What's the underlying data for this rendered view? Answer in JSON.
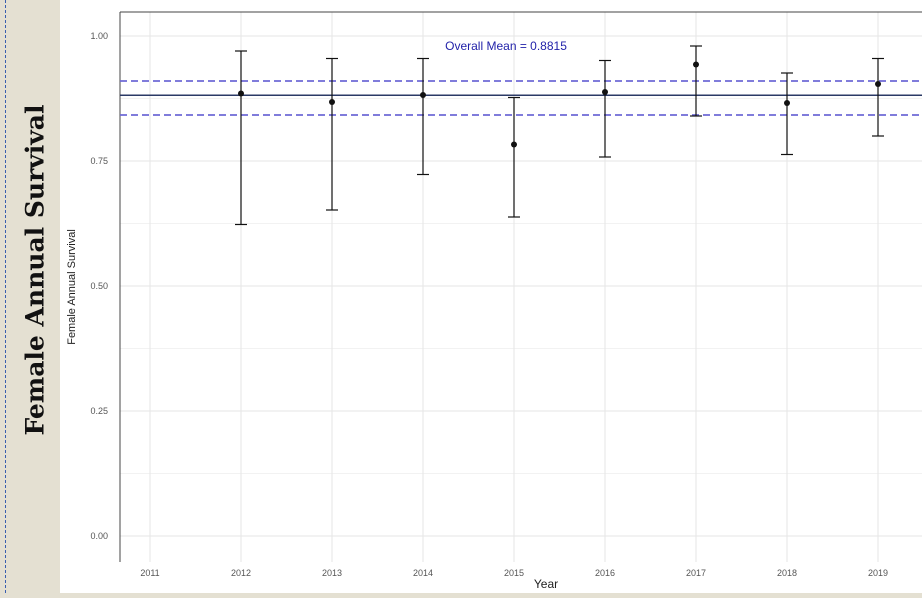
{
  "side_title": "Female Annual Survival",
  "chart_data": {
    "type": "scatter",
    "title": "",
    "xlabel": "Year",
    "ylabel": "Female Annual Survival",
    "ylim": [
      0,
      1
    ],
    "yticks": [
      "0.00",
      "0.25",
      "0.50",
      "0.75",
      "1.00"
    ],
    "ytick_values": [
      0,
      0.25,
      0.5,
      0.75,
      1.0
    ],
    "categories": [
      "2011",
      "2012",
      "2013",
      "2014",
      "2015",
      "2016",
      "2017",
      "2018",
      "2019"
    ],
    "points": [
      {
        "year": "2012",
        "estimate": 0.885,
        "lower": 0.623,
        "upper": 0.97
      },
      {
        "year": "2013",
        "estimate": 0.868,
        "lower": 0.652,
        "upper": 0.955
      },
      {
        "year": "2014",
        "estimate": 0.882,
        "lower": 0.723,
        "upper": 0.955
      },
      {
        "year": "2015",
        "estimate": 0.783,
        "lower": 0.638,
        "upper": 0.877
      },
      {
        "year": "2016",
        "estimate": 0.888,
        "lower": 0.758,
        "upper": 0.951
      },
      {
        "year": "2017",
        "estimate": 0.943,
        "lower": 0.84,
        "upper": 0.98
      },
      {
        "year": "2018",
        "estimate": 0.866,
        "lower": 0.763,
        "upper": 0.926
      },
      {
        "year": "2019",
        "estimate": 0.904,
        "lower": 0.8,
        "upper": 0.955
      }
    ],
    "overall_mean": 0.8815,
    "overall_mean_label": "Overall Mean = 0.8815",
    "mean_ci": [
      0.842,
      0.91
    ],
    "grid": true,
    "colors": {
      "points": "#111111",
      "mean_line": "#2b3a66",
      "ci_lines": "#6e6ad6",
      "annotation": "#1f1fa8"
    }
  }
}
